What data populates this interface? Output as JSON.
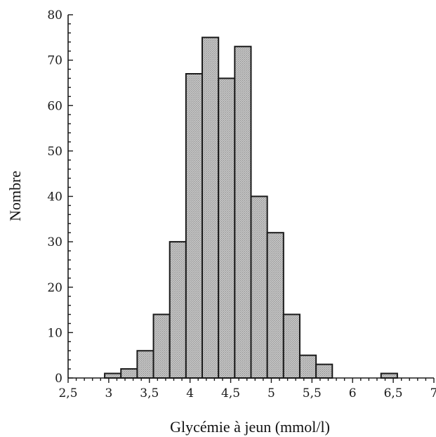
{
  "chart_data": {
    "type": "bar",
    "title": "",
    "xlabel": "Glycémie à jeun (mmol/l)",
    "ylabel": "Nombre",
    "xlim": [
      2.5,
      7
    ],
    "ylim": [
      0,
      80
    ],
    "x_tick_labels": [
      "2,5",
      "3",
      "3,5",
      "4",
      "4,5",
      "5",
      "5,5",
      "6",
      "6,5",
      "7"
    ],
    "x_tick_values": [
      2.5,
      3,
      3.5,
      4,
      4.5,
      5,
      5.5,
      6,
      6.5,
      7
    ],
    "y_tick_labels": [
      "0",
      "10",
      "20",
      "30",
      "40",
      "50",
      "60",
      "70",
      "80"
    ],
    "y_tick_values": [
      0,
      10,
      20,
      30,
      40,
      50,
      60,
      70,
      80
    ],
    "bin_width": 0.2,
    "bins": [
      {
        "x_start": 2.95,
        "x_end": 3.15,
        "value": 1
      },
      {
        "x_start": 3.15,
        "x_end": 3.35,
        "value": 2
      },
      {
        "x_start": 3.35,
        "x_end": 3.55,
        "value": 6
      },
      {
        "x_start": 3.55,
        "x_end": 3.75,
        "value": 14
      },
      {
        "x_start": 3.75,
        "x_end": 3.95,
        "value": 30
      },
      {
        "x_start": 3.95,
        "x_end": 4.15,
        "value": 67
      },
      {
        "x_start": 4.15,
        "x_end": 4.35,
        "value": 75
      },
      {
        "x_start": 4.35,
        "x_end": 4.55,
        "value": 66
      },
      {
        "x_start": 4.55,
        "x_end": 4.75,
        "value": 73
      },
      {
        "x_start": 4.75,
        "x_end": 4.95,
        "value": 40
      },
      {
        "x_start": 4.95,
        "x_end": 5.15,
        "value": 32
      },
      {
        "x_start": 5.15,
        "x_end": 5.35,
        "value": 14
      },
      {
        "x_start": 5.35,
        "x_end": 5.55,
        "value": 5
      },
      {
        "x_start": 5.55,
        "x_end": 5.75,
        "value": 3
      },
      {
        "x_start": 6.35,
        "x_end": 6.55,
        "value": 1
      }
    ],
    "grid": false,
    "bar_color": "#bdbdbd",
    "edge_color": "#1a1a1a"
  }
}
